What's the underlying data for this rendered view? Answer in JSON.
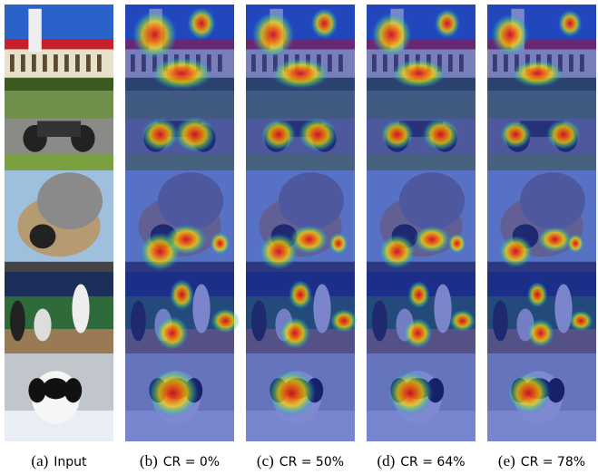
{
  "captions": [
    {
      "label": "(a)",
      "text": "Input"
    },
    {
      "label": "(b)",
      "text": "CR = 0%"
    },
    {
      "label": "(c)",
      "text": "CR = 50%"
    },
    {
      "label": "(d)",
      "text": "CR = 64%"
    },
    {
      "label": "(e)",
      "text": "CR = 78%"
    }
  ]
}
